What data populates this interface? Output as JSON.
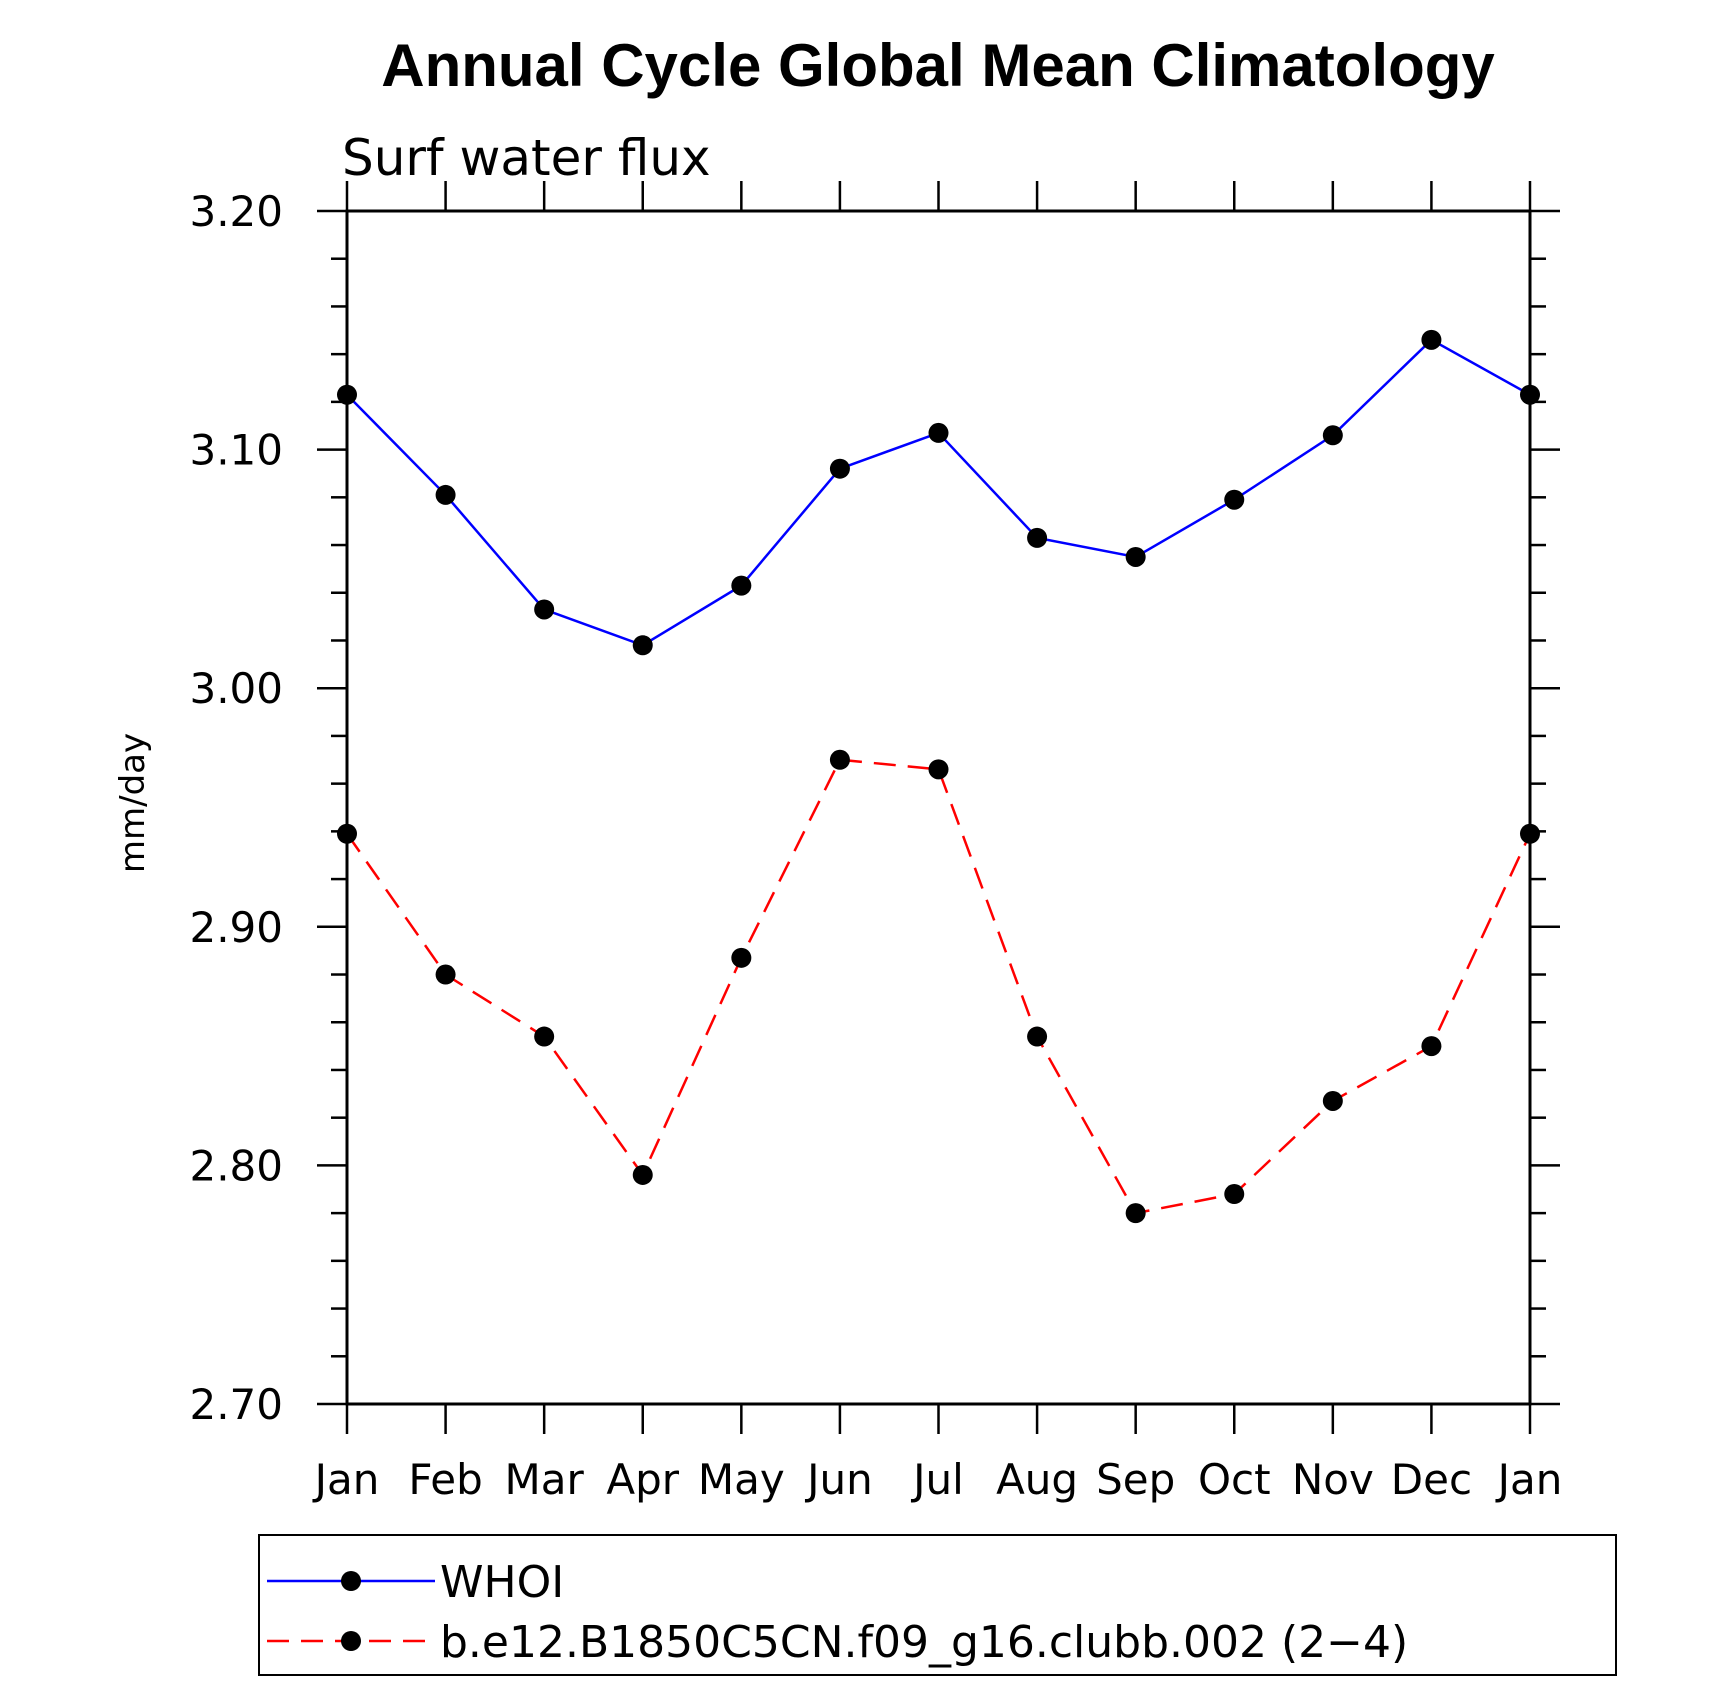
{
  "chart_data": {
    "type": "line",
    "title": "Annual Cycle Global Mean Climatology",
    "subtitle": "Surf water flux",
    "xlabel": "",
    "ylabel": "mm/day",
    "categories": [
      "Jan",
      "Feb",
      "Mar",
      "Apr",
      "May",
      "Jun",
      "Jul",
      "Aug",
      "Sep",
      "Oct",
      "Nov",
      "Dec",
      "Jan"
    ],
    "ylim": [
      2.7,
      3.2
    ],
    "yticks": [
      "2.70",
      "2.80",
      "2.90",
      "3.00",
      "3.10",
      "3.20"
    ],
    "grid": false,
    "legend_position": "bottom",
    "series": [
      {
        "name": "WHOI",
        "color": "#0000ff",
        "dash": "solid",
        "values": [
          3.123,
          3.081,
          3.033,
          3.018,
          3.043,
          3.092,
          3.107,
          3.063,
          3.055,
          3.079,
          3.106,
          3.146,
          3.123
        ]
      },
      {
        "name": "b.e12.B1850C5CN.f09_g16.clubb.002 (2−4)",
        "color": "#ff0000",
        "dash": "dashed",
        "values": [
          2.939,
          2.88,
          2.854,
          2.796,
          2.887,
          2.97,
          2.966,
          2.854,
          2.78,
          2.788,
          2.827,
          2.85,
          2.939
        ]
      }
    ]
  }
}
